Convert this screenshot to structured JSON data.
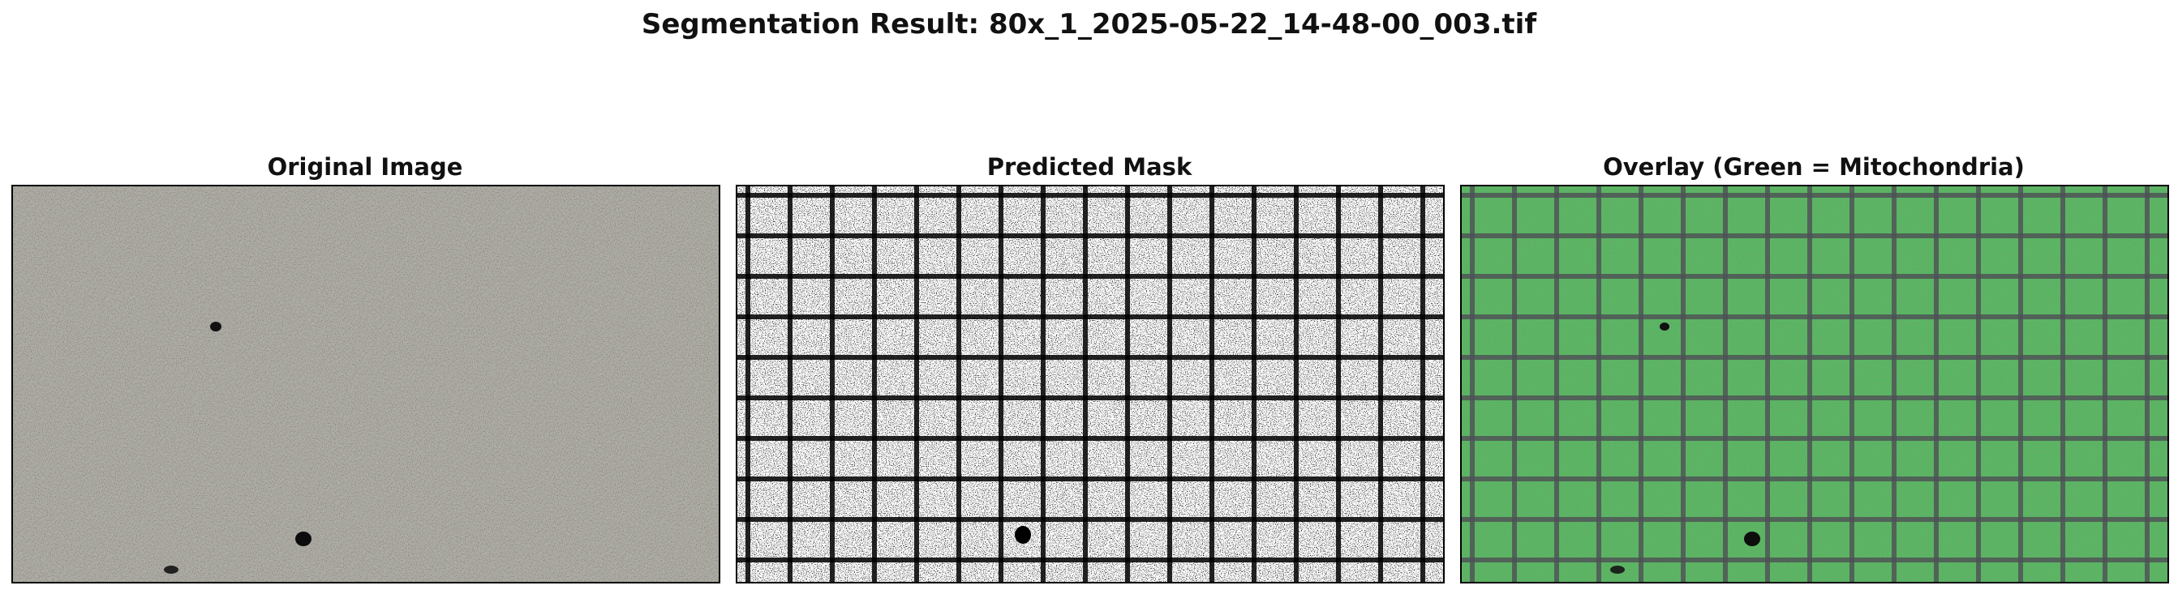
{
  "figure": {
    "title": "Segmentation Result: 80x_1_2025-05-22_14-48-00_003.tif"
  },
  "panels": [
    {
      "title": "Original Image",
      "content": "speckled micrograph, greyish-brown texture with small dark particles"
    },
    {
      "title": "Predicted Mask",
      "content": "binary mask, white cells separated by black grid lines"
    },
    {
      "title": "Overlay (Green = Mitochondria)",
      "content": "green overlay on original image, dark grid lines visible"
    }
  ],
  "colors": {
    "original_base": "#8c8a80",
    "original_dark": "#4a3a32",
    "original_light": "#d8d8d2",
    "mask_white": "#ffffff",
    "mask_black": "#000000",
    "overlay_green": "#4caf50",
    "overlay_dark": "#2e5a3a"
  }
}
